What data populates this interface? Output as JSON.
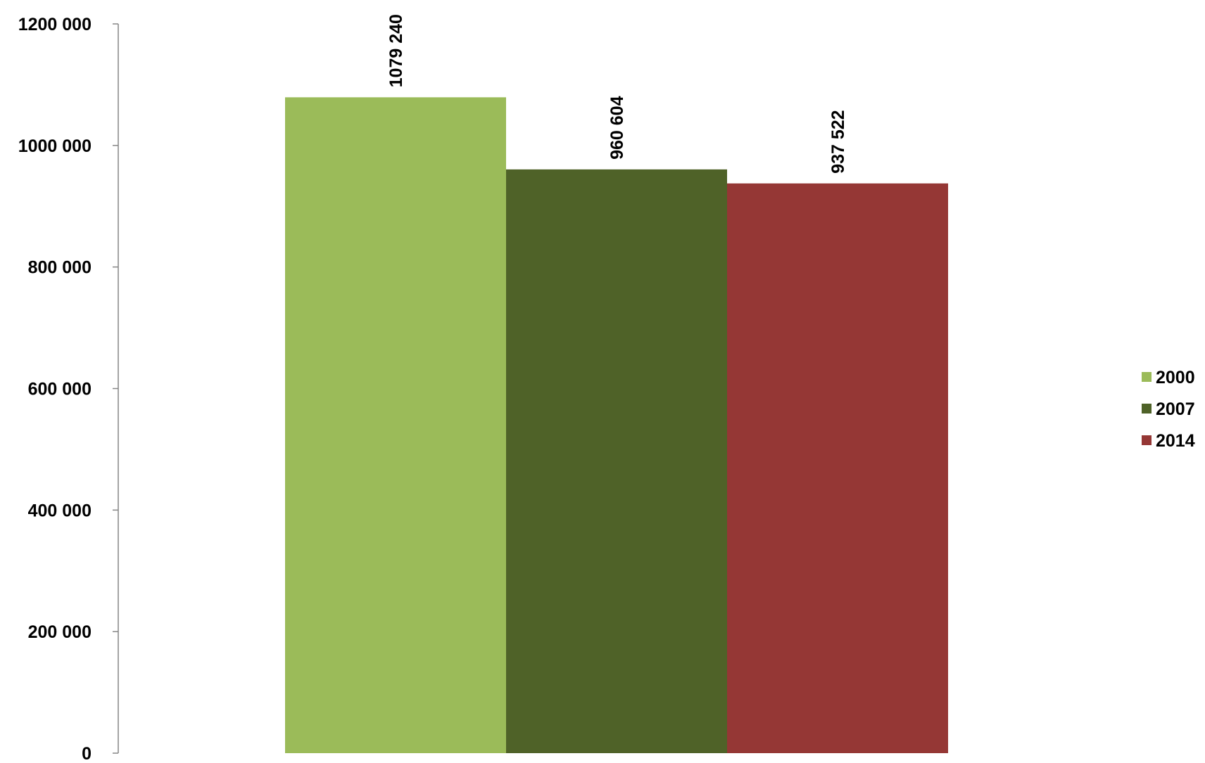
{
  "chart_data": {
    "type": "bar",
    "title": "",
    "xlabel": "",
    "ylabel": "",
    "ylim": [
      0,
      1200000
    ],
    "yticks": [
      0,
      200000,
      400000,
      600000,
      800000,
      1000000,
      1200000
    ],
    "ytick_labels": [
      "0",
      "200 000",
      "400 000",
      "600 000",
      "800 000",
      "1000 000",
      "1200 000"
    ],
    "grid": false,
    "legend_position": "right",
    "series": [
      {
        "name": "2000",
        "value": 1079240,
        "label": "1079 240",
        "color": "#9BBB59"
      },
      {
        "name": "2007",
        "value": 960604,
        "label": "960 604",
        "color": "#4F6228"
      },
      {
        "name": "2014",
        "value": 937522,
        "label": "937 522",
        "color": "#953735"
      }
    ]
  }
}
